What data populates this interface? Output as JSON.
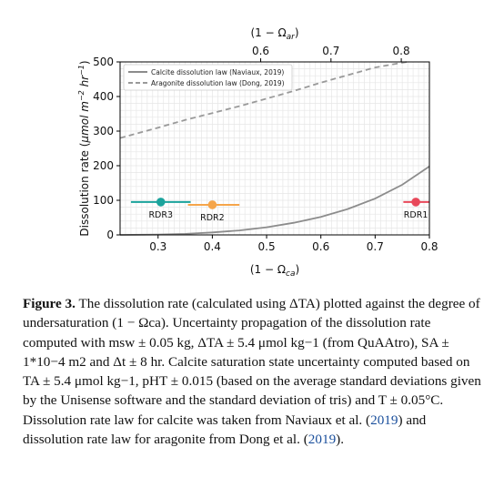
{
  "chart_data": {
    "type": "line",
    "xlabel": "(1 − Ωca)",
    "x_top_label": "(1 − Ωar)",
    "ylabel": "Dissolution rate (μmol m⁻² hr⁻¹)",
    "xlim": [
      0.23,
      0.8
    ],
    "ylim": [
      0,
      500
    ],
    "x_ticks": [
      0.3,
      0.4,
      0.5,
      0.6,
      0.7,
      0.8
    ],
    "x_tick_labels": [
      "0.3",
      "0.4",
      "0.5",
      "0.6",
      "0.7",
      "0.8"
    ],
    "y_ticks": [
      0,
      100,
      200,
      300,
      400,
      500
    ],
    "y_tick_labels": [
      "0",
      "100",
      "200",
      "300",
      "400",
      "500"
    ],
    "x_top_ticks": [
      0.6,
      0.7,
      0.8
    ],
    "x_top_tick_labels": [
      "0.6",
      "0.7",
      "0.8"
    ],
    "grid": true,
    "legend_position": "top-left",
    "series": [
      {
        "name": "Calcite dissolution law (Naviaux, 2019)",
        "style": "solid",
        "color": "#8c8c8c",
        "x": [
          0.23,
          0.3,
          0.35,
          0.4,
          0.45,
          0.5,
          0.55,
          0.6,
          0.65,
          0.7,
          0.75,
          0.8
        ],
        "y": [
          0,
          1,
          3,
          7,
          13,
          22,
          35,
          52,
          75,
          105,
          145,
          198
        ]
      },
      {
        "name": "Aragonite dissolution law (Dong, 2019)",
        "style": "dashed",
        "color": "#9a9a9a",
        "x": [
          0.23,
          0.3,
          0.35,
          0.4,
          0.45,
          0.5,
          0.55,
          0.6,
          0.65,
          0.7,
          0.75,
          0.76
        ],
        "y": [
          280,
          310,
          332,
          352,
          372,
          394,
          416,
          440,
          462,
          484,
          498,
          500
        ]
      }
    ],
    "points": [
      {
        "label": "RDR3",
        "x": 0.305,
        "y": 95,
        "xerr_low": 0.25,
        "xerr_high": 0.36,
        "color": "#1aa39c"
      },
      {
        "label": "RDR2",
        "x": 0.4,
        "y": 87,
        "xerr_low": 0.355,
        "xerr_high": 0.45,
        "color": "#f5a54a"
      },
      {
        "label": "RDR1",
        "x": 0.775,
        "y": 95,
        "xerr_low": 0.752,
        "xerr_high": 0.8,
        "color": "#e8485a"
      }
    ]
  },
  "caption": {
    "label": "Figure 3.",
    "segments": [
      " The dissolution rate (calculated using ΔTA) plotted against the degree of undersaturation (1 − Ωca). Uncertainty propagation of the dissolution rate computed with msw ± 0.05 kg, ΔTA ± 5.4 μmol kg−1 (from QuAAtro), SA ± 1*10−4 m2 and Δt ± 8 hr. Calcite saturation state uncertainty computed based on TA ± 5.4 μmol kg−1, pHT ± 0.015 (based on the average standard deviations given by the Unisense software and the standard deviation of tris) and T ± 0.05°C. Dissolution rate law for calcite was taken from Naviaux et al. (",
      "2019",
      ") and dissolution rate law for aragonite from Dong et al. (",
      "2019",
      ")."
    ]
  }
}
